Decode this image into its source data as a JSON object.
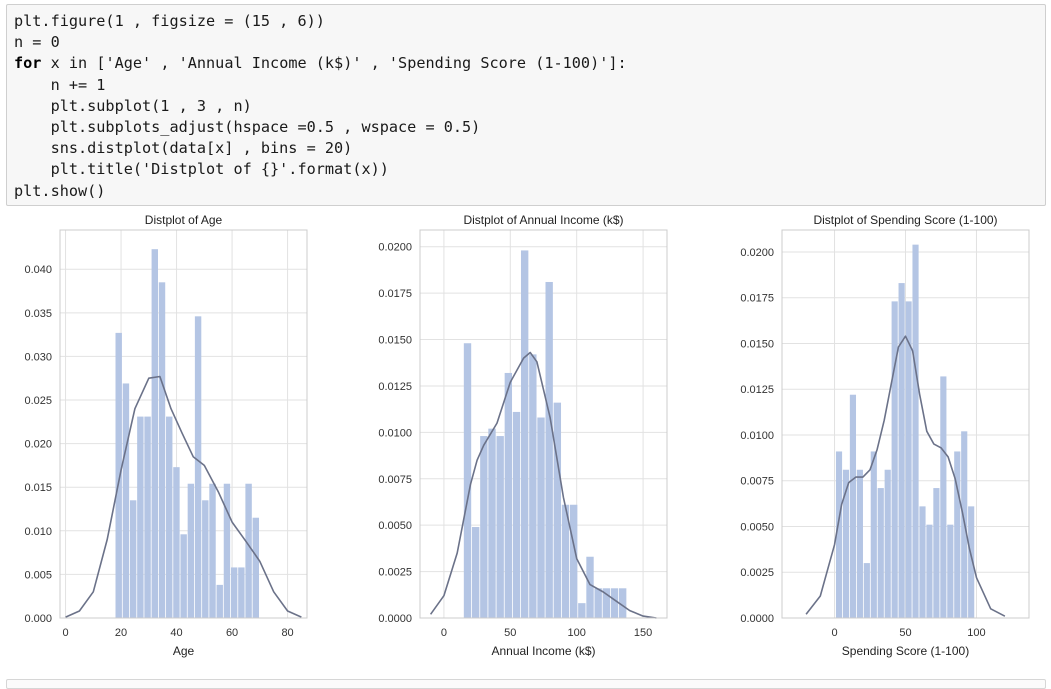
{
  "code_cell": {
    "lines": [
      {
        "parts": [
          {
            "t": "plt.figure(1 , figsize = (15 , 6))"
          }
        ]
      },
      {
        "parts": [
          {
            "t": "n = 0"
          }
        ]
      },
      {
        "parts": [
          {
            "t": "for",
            "kw": true
          },
          {
            "t": " x "
          },
          {
            "t": "in",
            "kw": false
          },
          {
            "t": " ['Age' , 'Annual Income (k$)' , 'Spending Score (1-100)']:"
          }
        ]
      },
      {
        "parts": [
          {
            "t": "    n += 1"
          }
        ]
      },
      {
        "parts": [
          {
            "t": "    plt.subplot(1 , 3 , n)"
          }
        ]
      },
      {
        "parts": [
          {
            "t": "    plt.subplots_adjust(hspace =0.5 , wspace = 0.5)"
          }
        ]
      },
      {
        "parts": [
          {
            "t": "    sns.distplot(data[x] , bins = 20)"
          }
        ]
      },
      {
        "parts": [
          {
            "t": "    plt.title('Distplot of {}'.format(x))"
          }
        ]
      },
      {
        "parts": [
          {
            "t": "plt.show()"
          }
        ]
      }
    ]
  },
  "style": {
    "bar_color": "#b4c5e4",
    "line_color": "#6b7289",
    "grid_color": "#e2e2e2",
    "axes_edge": "#cccccc",
    "tick_color": "#333333"
  },
  "chart_data": [
    {
      "type": "bar",
      "title": "Distplot of Age",
      "xlabel": "Age",
      "ylabel": "",
      "xlim": [
        -2,
        87
      ],
      "ylim": [
        0,
        0.0445
      ],
      "xticks": [
        0,
        20,
        40,
        60,
        80
      ],
      "xtick_labels": [
        "0",
        "20",
        "40",
        "60",
        "80"
      ],
      "yticks": [
        0,
        0.005,
        0.01,
        0.015,
        0.02,
        0.025,
        0.03,
        0.035,
        0.04
      ],
      "ytick_labels": [
        "0.000",
        "0.005",
        "0.010",
        "0.015",
        "0.020",
        "0.025",
        "0.030",
        "0.035",
        "0.040"
      ],
      "grid": true,
      "bin_edges": [
        18,
        20.6,
        23.2,
        25.8,
        28.4,
        31,
        33.6,
        36.2,
        38.8,
        41.4,
        44,
        46.6,
        49.2,
        51.8,
        54.4,
        57,
        59.6,
        62.2,
        64.8,
        67.4,
        70
      ],
      "values": [
        0.0327,
        0.0269,
        0.0135,
        0.0231,
        0.0231,
        0.0423,
        0.0385,
        0.0231,
        0.0173,
        0.0096,
        0.0154,
        0.0346,
        0.0135,
        0.0154,
        0.0038,
        0.0154,
        0.0058,
        0.0058,
        0.0154,
        0.0115
      ],
      "kde": {
        "x": [
          0,
          5,
          10,
          15,
          20,
          25,
          30,
          34,
          38,
          42,
          46,
          50,
          55,
          60,
          65,
          70,
          75,
          80,
          85
        ],
        "y": [
          0.0001,
          0.0008,
          0.003,
          0.009,
          0.017,
          0.024,
          0.0275,
          0.0277,
          0.024,
          0.0212,
          0.0185,
          0.0175,
          0.0145,
          0.011,
          0.0088,
          0.0065,
          0.003,
          0.0008,
          0.0001
        ]
      }
    },
    {
      "type": "bar",
      "title": "Distplot of Annual Income (k$)",
      "xlabel": "Annual Income (k$)",
      "ylabel": "",
      "xlim": [
        -18,
        168
      ],
      "ylim": [
        0,
        0.0209
      ],
      "xticks": [
        0,
        50,
        100,
        150
      ],
      "xtick_labels": [
        "0",
        "50",
        "100",
        "150"
      ],
      "yticks": [
        0,
        0.0025,
        0.005,
        0.0075,
        0.01,
        0.0125,
        0.015,
        0.0175,
        0.02
      ],
      "ytick_labels": [
        "0.0000",
        "0.0025",
        "0.0050",
        "0.0075",
        "0.0100",
        "0.0125",
        "0.0150",
        "0.0175",
        "0.0200"
      ],
      "grid": true,
      "bin_edges": [
        15,
        21.15,
        27.3,
        33.45,
        39.6,
        45.75,
        51.9,
        58.05,
        64.2,
        70.35,
        76.5,
        82.65,
        88.8,
        94.95,
        101.1,
        107.25,
        113.4,
        119.55,
        125.7,
        131.85,
        138
      ],
      "values": [
        0.0148,
        0.0049,
        0.0098,
        0.0102,
        0.0098,
        0.0132,
        0.0111,
        0.0198,
        0.0142,
        0.0108,
        0.0181,
        0.0116,
        0.0061,
        0.0061,
        0.0008,
        0.0033,
        0.0016,
        0.0016,
        0.0016,
        0.0016
      ],
      "kde": {
        "x": [
          -10,
          0,
          10,
          20,
          25,
          30,
          40,
          50,
          60,
          65,
          70,
          80,
          90,
          100,
          110,
          120,
          130,
          140,
          150,
          160
        ],
        "y": [
          0.0002,
          0.0012,
          0.0035,
          0.0072,
          0.0085,
          0.0093,
          0.0105,
          0.0127,
          0.014,
          0.0143,
          0.0138,
          0.0108,
          0.0065,
          0.0032,
          0.0018,
          0.0014,
          0.0009,
          0.0004,
          0.0001,
          0.0
        ]
      }
    },
    {
      "type": "bar",
      "title": "Distplot of Spending Score (1-100)",
      "xlabel": "Spending Score (1-100)",
      "ylabel": "",
      "xlim": [
        -37,
        137
      ],
      "ylim": [
        0,
        0.0212
      ],
      "xticks": [
        0,
        50,
        100
      ],
      "xtick_labels": [
        "0",
        "50",
        "100"
      ],
      "yticks": [
        0,
        0.0025,
        0.005,
        0.0075,
        0.01,
        0.0125,
        0.015,
        0.0175,
        0.02
      ],
      "ytick_labels": [
        "0.0000",
        "0.0025",
        "0.0050",
        "0.0075",
        "0.0100",
        "0.0125",
        "0.0150",
        "0.0175",
        "0.0200"
      ],
      "grid": true,
      "bin_edges": [
        1,
        5.9,
        10.8,
        15.7,
        20.6,
        25.5,
        30.4,
        35.3,
        40.2,
        45.1,
        50,
        54.9,
        59.8,
        64.7,
        69.6,
        74.5,
        79.4,
        84.3,
        89.2,
        94.1,
        99
      ],
      "values": [
        0.0091,
        0.0081,
        0.0122,
        0.0081,
        0.003,
        0.0091,
        0.0071,
        0.0081,
        0.0173,
        0.0183,
        0.0173,
        0.0204,
        0.0061,
        0.0051,
        0.0071,
        0.0132,
        0.0051,
        0.0091,
        0.0102,
        0.0061
      ],
      "kde": {
        "x": [
          -20,
          -10,
          0,
          5,
          10,
          15,
          20,
          25,
          30,
          35,
          40,
          45,
          50,
          55,
          60,
          65,
          70,
          75,
          80,
          85,
          90,
          95,
          100,
          110,
          120
        ],
        "y": [
          0.0002,
          0.0012,
          0.004,
          0.0062,
          0.0074,
          0.0077,
          0.0077,
          0.0081,
          0.0092,
          0.0108,
          0.0128,
          0.0148,
          0.0154,
          0.0146,
          0.0122,
          0.0102,
          0.0095,
          0.0093,
          0.0088,
          0.0076,
          0.0058,
          0.0038,
          0.0022,
          0.0005,
          0.0001
        ]
      }
    }
  ]
}
